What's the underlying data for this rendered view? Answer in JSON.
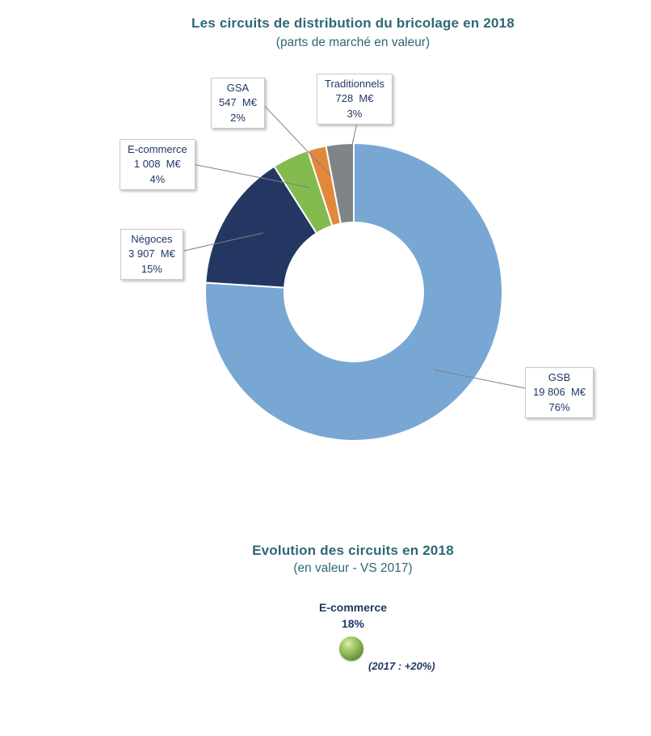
{
  "colors": {
    "title_teal": "#2E6875",
    "label_navy": "#1F3864",
    "leader_line": "#808080",
    "callout_border": "#C9C9C9",
    "background": "#FFFFFF"
  },
  "chart_data": [
    {
      "type": "pie",
      "subtype": "donut",
      "title": "Les circuits de distribution du bricolage en 2018",
      "subtitle": "(parts de marché en valeur)",
      "unit": "M€",
      "start_angle_deg": 0,
      "clockwise": true,
      "hole_ratio": 0.47,
      "segments": [
        {
          "label": "GSB",
          "value": 19806,
          "value_label": "19 806  M€",
          "percent": 76,
          "percent_label": "76%",
          "color": "#79A7D4"
        },
        {
          "label": "Négoces",
          "value": 3907,
          "value_label": "3 907  M€",
          "percent": 15,
          "percent_label": "15%",
          "color": "#243763"
        },
        {
          "label": "E-commerce",
          "value": 1008,
          "value_label": "1 008  M€",
          "percent": 4,
          "percent_label": "4%",
          "color": "#84BB4E"
        },
        {
          "label": "GSA",
          "value": 547,
          "value_label": "547  M€",
          "percent": 2,
          "percent_label": "2%",
          "color": "#E2883B"
        },
        {
          "label": "Traditionnels",
          "value": 728,
          "value_label": "728  M€",
          "percent": 3,
          "percent_label": "3%",
          "color": "#7F8487"
        }
      ]
    },
    {
      "type": "table",
      "title": "Evolution des circuits en 2018",
      "subtitle": "(en valeur - VS 2017)",
      "rows": [
        {
          "label": "E-commerce",
          "value": "18%",
          "note": "(2017 : +20%)",
          "marker": "green-sphere-icon",
          "marker_color": "#84B14B"
        }
      ]
    }
  ]
}
